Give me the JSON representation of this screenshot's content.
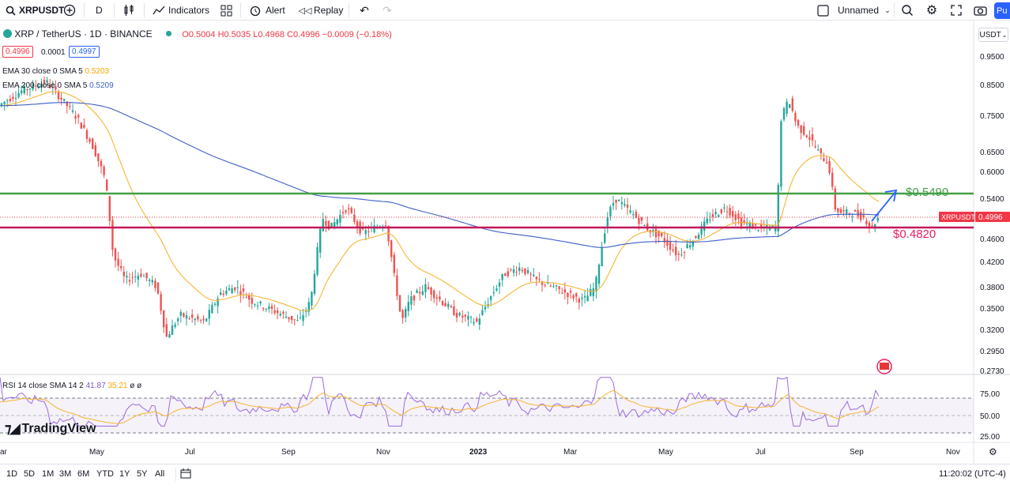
{
  "toolbar": {
    "symbol": "XRPUSDT",
    "interval": "D",
    "indicators_label": "Indicators",
    "alert_label": "Alert",
    "replay_label": "Replay",
    "layout_name": "Unnamed",
    "publish_label": "Pu"
  },
  "legend": {
    "title": "XRP / TetherUS · 1D · BINANCE",
    "ohlc": "O0.5004 H0.5035 L0.4968 C0.4996 −0.0009 (−0.18%)",
    "bid": "0.4996",
    "spread": "0.0001",
    "ask": "0.4997",
    "ema30_label": "EMA 30 close 0 SMA 5",
    "ema30_value": "0.5203",
    "ema200_label": "EMA 200 close 0 SMA 5",
    "ema200_value": "0.5209",
    "rsi_label": "RSI 14 close SMA 14 2",
    "rsi_value": "41.87",
    "rsi_sma_value": "35.21",
    "rsi_extra": "ø ø"
  },
  "currency_button": "USDT",
  "price_axis": [
    "0.9500",
    "0.8500",
    "0.7500",
    "0.6500",
    "0.6000",
    "0.5400",
    "0.4600",
    "0.4200",
    "0.3800",
    "0.3500",
    "0.3200",
    "0.2950",
    "0.2730"
  ],
  "rsi_axis": [
    "75.00",
    "50.00",
    "25.00"
  ],
  "time_axis": [
    "ar",
    "May",
    "Jul",
    "Sep",
    "Nov",
    "2023",
    "Mar",
    "May",
    "Jul",
    "Sep",
    "Nov"
  ],
  "price_tag": {
    "symbol": "XRPUSDT",
    "value": "0.4996"
  },
  "annotations": {
    "resistance": "$0.5490",
    "support": "$0.4820"
  },
  "watermark": "TradingView",
  "ranges": [
    "1D",
    "5D",
    "1M",
    "3M",
    "6M",
    "YTD",
    "1Y",
    "5Y",
    "All"
  ],
  "clock": "11:20:02 (UTC-4)",
  "colors": {
    "up": "#26a69a",
    "down": "#ef5350",
    "ema30": "#f7b531",
    "ema200": "#3f5fc7",
    "resistance": "#43a047",
    "support": "#c2185b",
    "arrow": "#2962ff",
    "rsi": "#9c6ade"
  }
}
